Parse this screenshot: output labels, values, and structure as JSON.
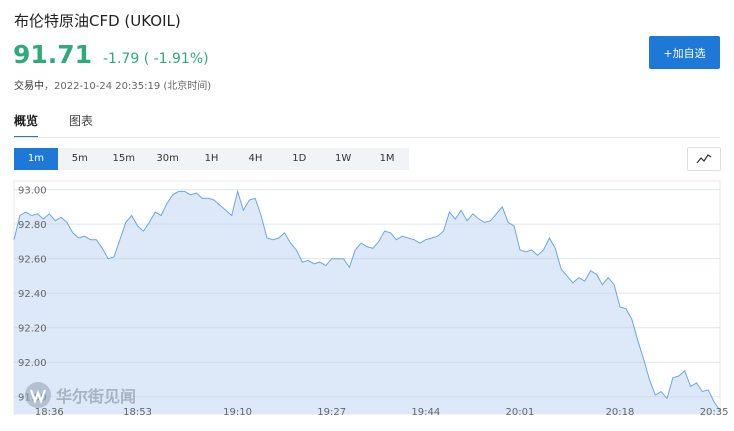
{
  "header": {
    "title": "布伦特原油CFD  (UKOIL)",
    "price": "91.71",
    "change": "-1.79",
    "change_pct": "( -1.91%)",
    "status": "交易中",
    "timestamp": "，2022-10-24 20:35:19 (北京时间)"
  },
  "button": "+加自选",
  "tabs": [
    "概览",
    "图表"
  ],
  "periods": [
    "1m",
    "5m",
    "15m",
    "30m",
    "1H",
    "4H",
    "1D",
    "1W",
    "1M"
  ],
  "watermark": "华尔街见闻",
  "chart_data": {
    "type": "line",
    "color": "#6aa6e6",
    "fill": "#dde9f8",
    "grid": true,
    "ylim": [
      91.7,
      93.05
    ],
    "yticks": [
      {
        "value": 93,
        "label": "93.00"
      },
      {
        "value": 92.8,
        "label": "92.80"
      },
      {
        "value": 92.6,
        "label": "92.60"
      },
      {
        "value": 92.4,
        "label": "92.40"
      },
      {
        "value": 92.2,
        "label": "92.20"
      },
      {
        "value": 92,
        "label": "92.00"
      },
      {
        "value": 91.8,
        "label": "91.80"
      }
    ],
    "categories": [
      null,
      null,
      null,
      null,
      null,
      null,
      "18:36",
      null,
      null,
      null,
      null,
      null,
      null,
      null,
      null,
      null,
      null,
      null,
      null,
      null,
      null,
      "18:53",
      null,
      null,
      null,
      null,
      null,
      null,
      null,
      null,
      null,
      null,
      null,
      null,
      null,
      null,
      null,
      null,
      "19:10",
      null,
      null,
      null,
      null,
      null,
      null,
      null,
      null,
      null,
      null,
      null,
      null,
      null,
      null,
      null,
      "19:27",
      null,
      null,
      null,
      null,
      null,
      null,
      null,
      null,
      null,
      null,
      null,
      null,
      null,
      null,
      null,
      "19:44",
      null,
      null,
      null,
      null,
      null,
      null,
      null,
      null,
      null,
      null,
      null,
      null,
      null,
      null,
      null,
      "20:01",
      null,
      null,
      null,
      null,
      null,
      null,
      null,
      null,
      null,
      null,
      null,
      null,
      null,
      null,
      null,
      null,
      "20:18",
      null,
      null,
      null,
      null,
      null,
      null,
      null,
      null,
      null,
      null,
      null,
      null,
      null,
      null,
      null,
      "20:35",
      null
    ],
    "values": [
      92.71,
      92.85,
      92.87,
      92.85,
      92.86,
      92.83,
      92.86,
      92.82,
      92.84,
      92.81,
      92.75,
      92.72,
      92.73,
      92.71,
      92.71,
      92.66,
      92.6,
      92.61,
      92.71,
      92.81,
      92.85,
      92.79,
      92.76,
      92.81,
      92.87,
      92.85,
      92.92,
      92.97,
      92.99,
      92.99,
      92.97,
      92.98,
      92.95,
      92.95,
      92.94,
      92.91,
      92.88,
      92.85,
      92.99,
      92.88,
      92.94,
      92.95,
      92.85,
      92.72,
      92.71,
      92.72,
      92.75,
      92.69,
      92.65,
      92.58,
      92.59,
      92.57,
      92.58,
      92.56,
      92.6,
      92.6,
      92.6,
      92.55,
      92.65,
      92.69,
      92.67,
      92.66,
      92.7,
      92.76,
      92.75,
      92.71,
      92.73,
      92.72,
      92.71,
      92.69,
      92.71,
      92.72,
      92.73,
      92.76,
      92.87,
      92.83,
      92.88,
      92.82,
      92.86,
      92.83,
      92.81,
      92.82,
      92.86,
      92.9,
      92.81,
      92.79,
      92.65,
      92.64,
      92.65,
      92.62,
      92.65,
      92.72,
      92.66,
      92.54,
      92.5,
      92.46,
      92.49,
      92.47,
      92.53,
      92.51,
      92.45,
      92.49,
      92.45,
      92.32,
      92.31,
      92.25,
      92.13,
      92.02,
      91.9,
      91.81,
      91.83,
      91.79,
      91.91,
      91.92,
      91.95,
      91.86,
      91.88,
      91.83,
      91.84,
      91.77,
      91.72
    ]
  }
}
